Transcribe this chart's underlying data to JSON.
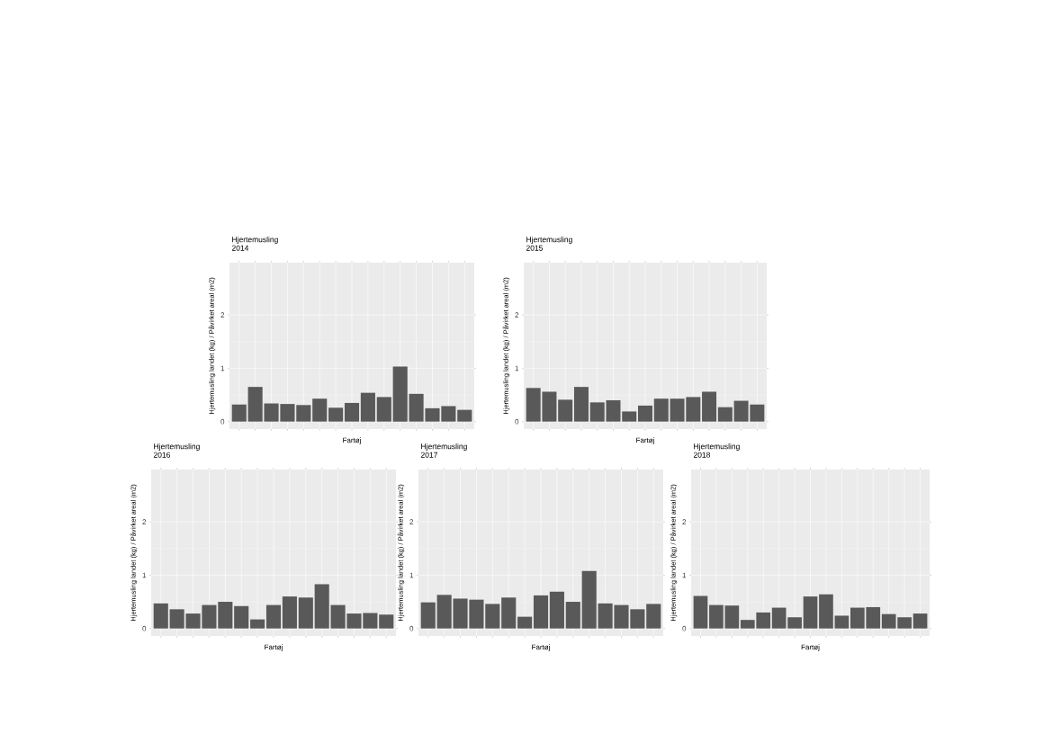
{
  "chart_data": [
    {
      "type": "bar",
      "title": "Hjertemusling",
      "subtitle": "2014",
      "xlabel": "Fartøj",
      "ylabel": "Hjertemusling landet (kg) / Påvirket areal (m2)",
      "categories": [
        null,
        null,
        null,
        null,
        null,
        null,
        null,
        null,
        null,
        null,
        null,
        null,
        null,
        null,
        null
      ],
      "values": [
        0.32,
        0.65,
        0.34,
        0.33,
        0.31,
        0.43,
        0.26,
        0.35,
        0.54,
        0.46,
        1.03,
        0.52,
        0.25,
        0.29,
        0.22
      ],
      "color": "#595959",
      "ylim": [
        -0.14,
        2.98
      ],
      "yticks": [
        0,
        1,
        2
      ],
      "grid": true
    },
    {
      "type": "bar",
      "title": "Hjertemusling",
      "subtitle": "2015",
      "xlabel": "Fartøj",
      "ylabel": "Hjertemusling landet (kg) / Påvirket areal (m2)",
      "categories": [
        null,
        null,
        null,
        null,
        null,
        null,
        null,
        null,
        null,
        null,
        null,
        null,
        null,
        null,
        null
      ],
      "values": [
        0.63,
        0.56,
        0.41,
        0.65,
        0.36,
        0.4,
        0.19,
        0.3,
        0.43,
        0.43,
        0.46,
        0.56,
        0.27,
        0.39,
        0.32
      ],
      "color": "#595959",
      "ylim": [
        -0.14,
        2.98
      ],
      "yticks": [
        0,
        1,
        2
      ],
      "grid": true
    },
    {
      "type": "bar",
      "title": "Hjertemusling",
      "subtitle": "2016",
      "xlabel": "Fartøj",
      "ylabel": "Hjertemusling landet (kg) / Påvirket areal (m2)",
      "categories": [
        null,
        null,
        null,
        null,
        null,
        null,
        null,
        null,
        null,
        null,
        null,
        null,
        null,
        null,
        null
      ],
      "values": [
        0.47,
        0.36,
        0.28,
        0.44,
        0.5,
        0.42,
        0.17,
        0.44,
        0.6,
        0.58,
        0.83,
        0.44,
        0.28,
        0.29,
        0.26
      ],
      "color": "#595959",
      "ylim": [
        -0.14,
        2.98
      ],
      "yticks": [
        0,
        1,
        2
      ],
      "grid": true
    },
    {
      "type": "bar",
      "title": "Hjertemusling",
      "subtitle": "2017",
      "xlabel": "Fartøj",
      "ylabel": "Hjertemusling landet (kg) / Påvirket areal (m2)",
      "categories": [
        null,
        null,
        null,
        null,
        null,
        null,
        null,
        null,
        null,
        null,
        null,
        null,
        null,
        null,
        null
      ],
      "values": [
        0.49,
        0.63,
        0.56,
        0.54,
        0.46,
        0.58,
        0.22,
        0.62,
        0.69,
        0.5,
        1.08,
        0.47,
        0.44,
        0.36,
        0.46
      ],
      "color": "#595959",
      "ylim": [
        -0.14,
        2.98
      ],
      "yticks": [
        0,
        1,
        2
      ],
      "grid": true
    },
    {
      "type": "bar",
      "title": "Hjertemusling",
      "subtitle": "2018",
      "xlabel": "Fartøj",
      "ylabel": "Hjertemusling landet (kg) / Påvirket areal (m2)",
      "categories": [
        null,
        null,
        null,
        null,
        null,
        null,
        null,
        null,
        null,
        null,
        null,
        null,
        null,
        null,
        null
      ],
      "values": [
        0.61,
        0.44,
        0.43,
        0.16,
        0.3,
        0.39,
        0.21,
        0.6,
        0.64,
        0.24,
        0.39,
        0.4,
        0.27,
        0.21,
        0.28
      ],
      "color": "#595959",
      "ylim": [
        -0.14,
        2.98
      ],
      "yticks": [
        0,
        1,
        2
      ],
      "grid": true
    }
  ]
}
